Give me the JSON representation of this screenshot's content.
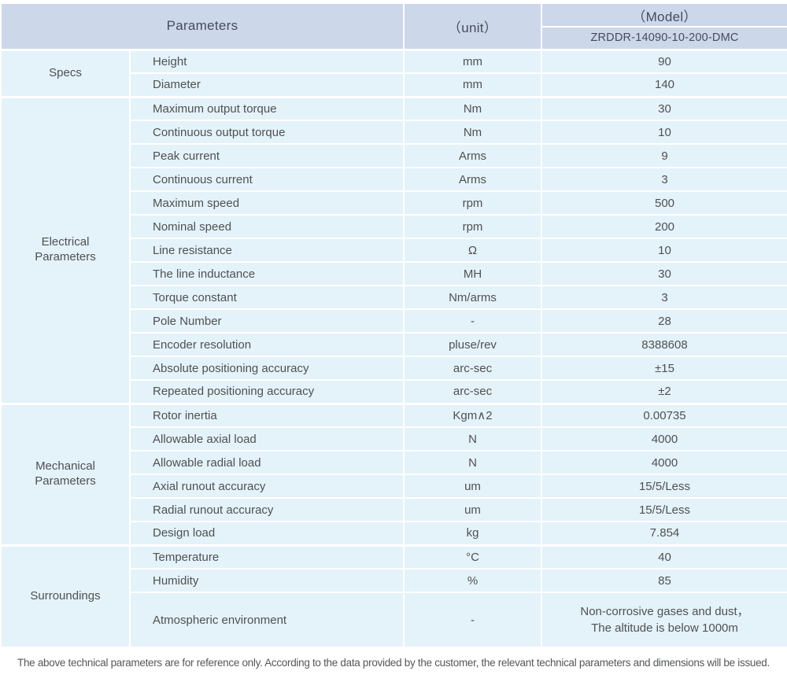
{
  "header": {
    "parameters": "Parameters",
    "unit": "（unit）",
    "model": "（Model）",
    "model_number": "ZRDDR-14090-10-200-DMC"
  },
  "sections": [
    {
      "group": "Specs",
      "rows": [
        {
          "param": "Height",
          "unit": "mm",
          "value": "90"
        },
        {
          "param": "Diameter",
          "unit": "mm",
          "value": "140"
        }
      ]
    },
    {
      "group": "Electrical Parameters",
      "rows": [
        {
          "param": "Maximum output torque",
          "unit": "Nm",
          "value": "30"
        },
        {
          "param": "Continuous output torque",
          "unit": "Nm",
          "value": "10"
        },
        {
          "param": "Peak current",
          "unit": "Arms",
          "value": "9"
        },
        {
          "param": "Continuous current",
          "unit": "Arms",
          "value": "3"
        },
        {
          "param": "Maximum speed",
          "unit": "rpm",
          "value": "500"
        },
        {
          "param": "Nominal speed",
          "unit": "rpm",
          "value": "200"
        },
        {
          "param": "Line resistance",
          "unit": "Ω",
          "value": "10"
        },
        {
          "param": "The line inductance",
          "unit": "MH",
          "value": "30"
        },
        {
          "param": "Torque constant",
          "unit": "Nm/arms",
          "value": "3"
        },
        {
          "param": "Pole Number",
          "unit": "-",
          "value": "28"
        },
        {
          "param": "Encoder resolution",
          "unit": "pluse/rev",
          "value": "8388608"
        },
        {
          "param": "Absolute positioning accuracy",
          "unit": "arc-sec",
          "value": "±15"
        },
        {
          "param": "Repeated positioning accuracy",
          "unit": "arc-sec",
          "value": "±2"
        }
      ]
    },
    {
      "group": "Mechanical Parameters",
      "rows": [
        {
          "param": "Rotor inertia",
          "unit": "Kgm∧2",
          "value": "0.00735"
        },
        {
          "param": "Allowable axial load",
          "unit": "N",
          "value": "4000"
        },
        {
          "param": "Allowable radial load",
          "unit": "N",
          "value": "4000"
        },
        {
          "param": "Axial runout accuracy",
          "unit": "um",
          "value": "15/5/Less"
        },
        {
          "param": "Radial runout accuracy",
          "unit": "um",
          "value": "15/5/Less"
        },
        {
          "param": "Design load",
          "unit": "kg",
          "value": "7.854"
        }
      ]
    },
    {
      "group": "Surroundings",
      "rows": [
        {
          "param": "Temperature",
          "unit": "°C",
          "value": "40"
        },
        {
          "param": "Humidity",
          "unit": "%",
          "value": "85"
        },
        {
          "param": "Atmospheric environment",
          "unit": "-",
          "value": "Non-corrosive gases and dust，\nThe altitude is below 1000m",
          "tall": true
        }
      ]
    }
  ],
  "footer_note": "The above technical parameters are for reference only. According to the data provided by the customer, the relevant technical parameters and dimensions will be issued.",
  "colors": {
    "header_bg": "#ccd7ea",
    "row_bg": "#e4f2fa",
    "divider": "#ffffff",
    "text": "#4f5153"
  }
}
